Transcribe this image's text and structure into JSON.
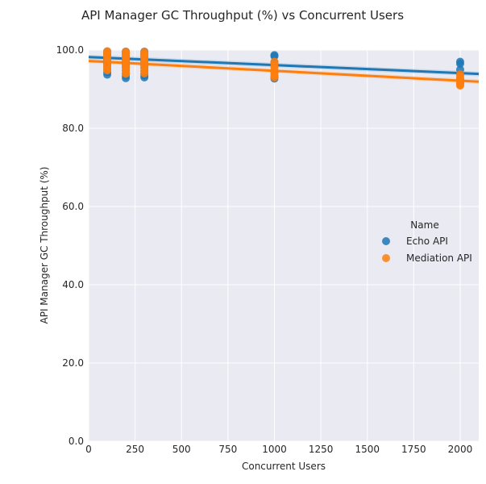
{
  "chart_data": {
    "type": "scatter",
    "title": "API Manager GC Throughput (%) vs Concurrent Users",
    "xlabel": "Concurrent Users",
    "ylabel": "API Manager GC Throughput (%)",
    "xlim": [
      0,
      2100
    ],
    "ylim": [
      0,
      100
    ],
    "xticks": [
      0,
      250,
      500,
      750,
      1000,
      1250,
      1500,
      1750,
      2000
    ],
    "xtick_labels": [
      "0",
      "250",
      "500",
      "750",
      "1000",
      "1250",
      "1500",
      "1750",
      "2000"
    ],
    "yticks": [
      0,
      20,
      40,
      60,
      80,
      100
    ],
    "ytick_labels": [
      "0.0",
      "20.0",
      "40.0",
      "60.0",
      "80.0",
      "100.0"
    ],
    "grid": true,
    "legend": {
      "title": "Name",
      "position": "right"
    },
    "series": [
      {
        "name": "Echo API",
        "color": "#1f77b4",
        "x": [
          100,
          100,
          100,
          100,
          100,
          100,
          100,
          100,
          100,
          100,
          100,
          200,
          200,
          200,
          200,
          200,
          200,
          200,
          200,
          200,
          200,
          200,
          200,
          300,
          300,
          300,
          300,
          300,
          300,
          300,
          300,
          300,
          300,
          300,
          300,
          1000,
          1000,
          1000,
          1000,
          1000,
          1000,
          1000,
          2000,
          2000,
          2000,
          2000,
          2000,
          2000
        ],
        "y": [
          99.6,
          99.2,
          98.8,
          98.0,
          97.5,
          97.0,
          96.5,
          95.8,
          95.0,
          94.3,
          93.7,
          99.6,
          99.3,
          98.9,
          98.3,
          97.7,
          97.0,
          96.3,
          95.6,
          94.8,
          94.0,
          93.4,
          92.8,
          99.6,
          99.2,
          98.8,
          98.2,
          97.6,
          97.0,
          96.3,
          95.5,
          94.7,
          94.0,
          93.5,
          93.0,
          98.7,
          98.4,
          96.9,
          96.0,
          94.5,
          93.2,
          92.7,
          97.0,
          96.5,
          95.0,
          93.8,
          92.5,
          91.5
        ],
        "trend": {
          "x": [
            0,
            2100
          ],
          "y": [
            98.2,
            93.9
          ]
        }
      },
      {
        "name": "Mediation API",
        "color": "#ff7f0e",
        "x": [
          100,
          100,
          100,
          100,
          100,
          100,
          100,
          100,
          100,
          100,
          200,
          200,
          200,
          200,
          200,
          200,
          200,
          200,
          200,
          200,
          200,
          300,
          300,
          300,
          300,
          300,
          300,
          300,
          300,
          300,
          300,
          1000,
          1000,
          1000,
          1000,
          1000,
          1000,
          1000,
          2000,
          2000,
          2000,
          2000,
          2000,
          2000,
          2000,
          2000
        ],
        "y": [
          99.7,
          99.3,
          98.9,
          98.3,
          97.7,
          97.0,
          96.4,
          95.8,
          95.2,
          94.8,
          99.6,
          99.2,
          98.8,
          98.0,
          97.4,
          96.8,
          96.1,
          95.5,
          94.9,
          94.2,
          93.9,
          99.5,
          99.0,
          98.5,
          97.9,
          97.2,
          96.6,
          96.0,
          95.3,
          94.6,
          94.0,
          97.0,
          96.2,
          95.5,
          94.7,
          94.0,
          93.5,
          93.0,
          93.8,
          93.2,
          92.7,
          92.2,
          91.8,
          91.4,
          91.1,
          90.9
        ],
        "trend": {
          "x": [
            0,
            2100
          ],
          "y": [
            97.2,
            91.9
          ]
        }
      }
    ]
  }
}
